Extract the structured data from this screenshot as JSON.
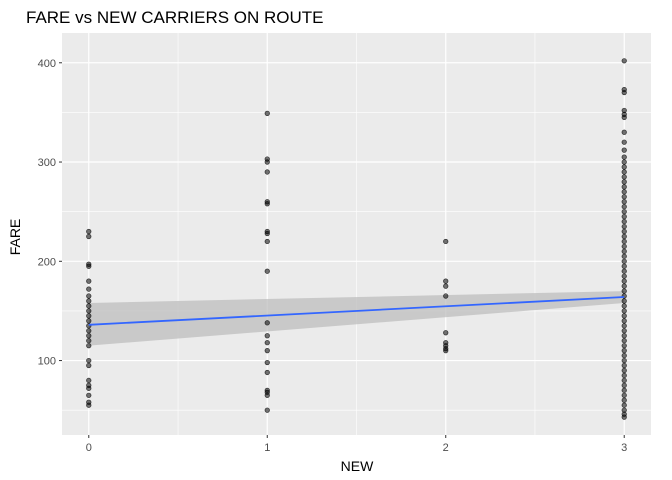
{
  "chart_data": {
    "type": "scatter",
    "title": "FARE vs NEW CARRIERS ON ROUTE",
    "xlabel": "NEW",
    "ylabel": "FARE",
    "xlim": [
      -0.15,
      3.15
    ],
    "ylim": [
      25,
      430
    ],
    "x_ticks": [
      0,
      1,
      2,
      3
    ],
    "y_ticks": [
      100,
      200,
      300,
      400
    ],
    "x_tick_labels": [
      "0",
      "1",
      "2",
      "3"
    ],
    "y_tick_labels": [
      "100",
      "200",
      "300",
      "400"
    ],
    "grid": true,
    "background": "#ebebeb",
    "point_color": "#000000",
    "line_color": "#3366ff",
    "band_color": "#bdbdbd",
    "series": [
      {
        "x": 0,
        "values": [
          230,
          225,
          197,
          195,
          180,
          172,
          165,
          160,
          155,
          150,
          145,
          140,
          135,
          130,
          125,
          120,
          115,
          100,
          95,
          80,
          75,
          72,
          65,
          58,
          55
        ]
      },
      {
        "x": 1,
        "values": [
          349,
          303,
          300,
          290,
          260,
          258,
          230,
          228,
          220,
          190,
          138,
          125,
          118,
          110,
          98,
          88,
          70,
          68,
          65,
          50
        ]
      },
      {
        "x": 2,
        "values": [
          220,
          180,
          175,
          165,
          128,
          118,
          115,
          112,
          110
        ]
      },
      {
        "x": 3,
        "values": [
          402,
          373,
          370,
          352,
          348,
          345,
          330,
          320,
          312,
          305,
          300,
          295,
          290,
          285,
          280,
          275,
          270,
          265,
          260,
          255,
          250,
          245,
          240,
          235,
          230,
          225,
          220,
          215,
          210,
          205,
          200,
          195,
          190,
          185,
          180,
          175,
          170,
          165,
          160,
          155,
          150,
          145,
          140,
          135,
          130,
          125,
          120,
          115,
          110,
          105,
          100,
          95,
          90,
          85,
          80,
          75,
          70,
          65,
          60,
          55,
          50,
          46,
          43
        ]
      }
    ],
    "trend": {
      "method": "linear",
      "x": [
        0,
        3
      ],
      "y": [
        136,
        164
      ],
      "ci_lower": [
        115,
        158
      ],
      "ci_upper": [
        158,
        170
      ]
    }
  }
}
